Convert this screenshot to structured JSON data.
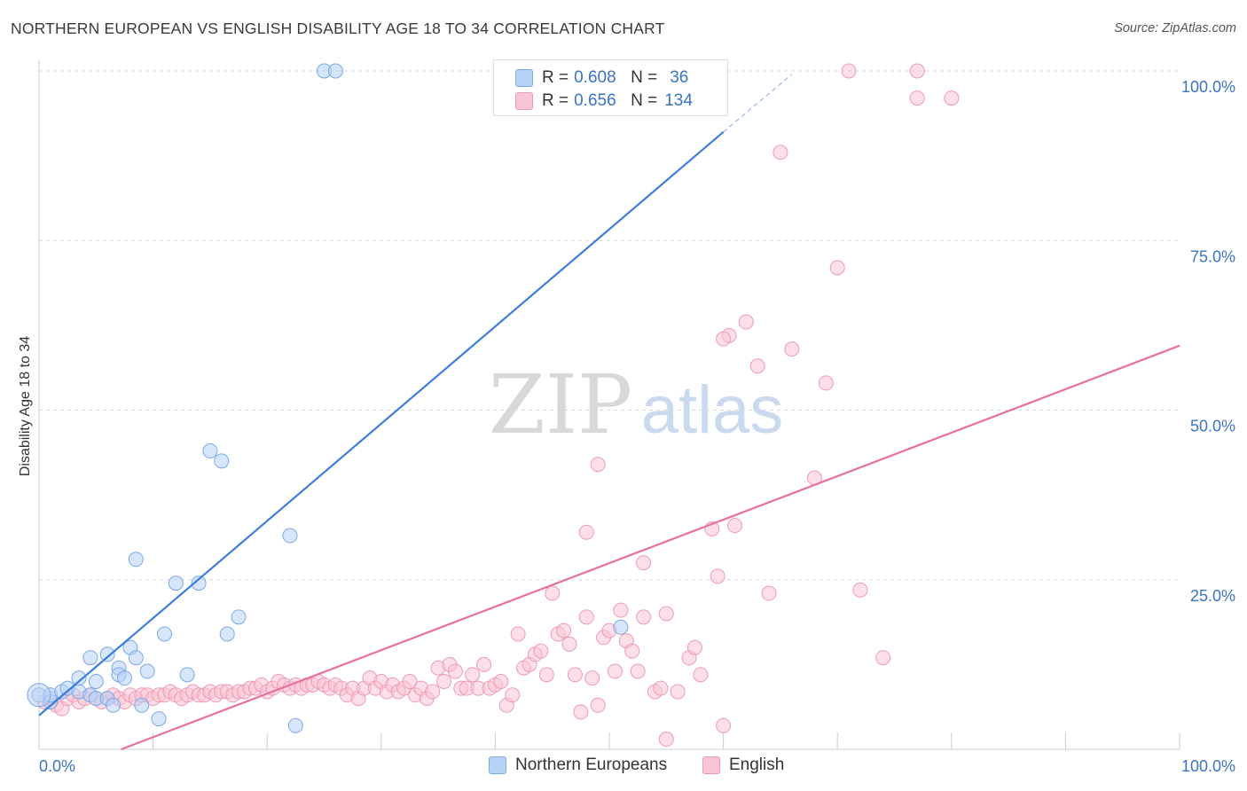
{
  "title": "NORTHERN EUROPEAN VS ENGLISH DISABILITY AGE 18 TO 34 CORRELATION CHART",
  "source": "Source: ZipAtlas.com",
  "watermark": {
    "zip": "ZIP",
    "atlas": "atlas"
  },
  "legend": {
    "items": [
      {
        "r_label": "R =",
        "r_value": "0.608",
        "n_label": "N =",
        "n_value": "36",
        "fill": "#b7d2f5",
        "stroke": "#7aa8e8"
      },
      {
        "r_label": "R =",
        "r_value": "0.656",
        "n_label": "N =",
        "n_value": "134",
        "fill": "#f9c4d4",
        "stroke": "#ef9ab5"
      }
    ]
  },
  "bottom_legend": [
    "Northern Europeans",
    "English"
  ],
  "chart_data": {
    "type": "scatter",
    "xlabel": "",
    "ylabel": "Disability Age 18 to 34",
    "xlim": [
      0,
      100
    ],
    "ylim": [
      0,
      100
    ],
    "x_tick_labels": [
      "0.0%",
      "100.0%"
    ],
    "y_tick_values": [
      25,
      50,
      75,
      100
    ],
    "y_tick_labels": [
      "25.0%",
      "50.0%",
      "75.0%",
      "100.0%"
    ],
    "grid": true,
    "series": [
      {
        "name": "Northern Europeans",
        "color": "#3c7fd8",
        "fill": "#b7d2f5",
        "stroke": "#7aa8e8",
        "trend": {
          "x0": 0,
          "y0": 5.0,
          "x1": 60,
          "y1": 91.0,
          "dash_to_x": 66,
          "dash_to_y": 99.5
        },
        "points": [
          [
            0,
            8
          ],
          [
            1,
            7
          ],
          [
            1,
            8
          ],
          [
            2,
            8.5
          ],
          [
            2.5,
            9
          ],
          [
            3.5,
            8.5
          ],
          [
            3.5,
            10.5
          ],
          [
            4.5,
            8
          ],
          [
            4.5,
            13.5
          ],
          [
            5,
            7.5
          ],
          [
            5,
            10
          ],
          [
            6,
            7.5
          ],
          [
            6,
            14
          ],
          [
            6.5,
            6.5
          ],
          [
            7,
            12
          ],
          [
            7,
            11
          ],
          [
            7.5,
            10.5
          ],
          [
            8,
            15
          ],
          [
            8.5,
            28
          ],
          [
            8.5,
            13.5
          ],
          [
            9,
            6.5
          ],
          [
            9.5,
            11.5
          ],
          [
            10.5,
            4.5
          ],
          [
            11,
            17
          ],
          [
            12,
            24.5
          ],
          [
            13,
            11
          ],
          [
            14,
            24.5
          ],
          [
            15,
            44
          ],
          [
            16,
            42.5
          ],
          [
            16.5,
            17
          ],
          [
            17.5,
            19.5
          ],
          [
            22,
            31.5
          ],
          [
            22.5,
            3.5
          ],
          [
            25,
            100
          ],
          [
            26,
            100
          ],
          [
            51,
            18
          ]
        ]
      },
      {
        "name": "English",
        "color": "#e8719c",
        "fill": "#f9c4d4",
        "stroke": "#ef9ab5",
        "trend": {
          "x0": 7.2,
          "y0": 0,
          "x1": 100,
          "y1": 59.5
        },
        "points": [
          [
            0.5,
            7
          ],
          [
            1,
            7.5
          ],
          [
            1.5,
            6.5
          ],
          [
            2,
            6
          ],
          [
            2.5,
            7.5
          ],
          [
            3,
            8
          ],
          [
            3.5,
            7
          ],
          [
            4,
            7.5
          ],
          [
            4.5,
            8
          ],
          [
            5,
            7.5
          ],
          [
            5.5,
            7
          ],
          [
            6,
            7.5
          ],
          [
            6.5,
            8
          ],
          [
            7,
            7.5
          ],
          [
            7.5,
            7
          ],
          [
            8,
            8
          ],
          [
            8.5,
            7.5
          ],
          [
            9,
            8
          ],
          [
            9.5,
            8
          ],
          [
            10,
            7.5
          ],
          [
            10.5,
            8
          ],
          [
            11,
            8
          ],
          [
            11.5,
            8.5
          ],
          [
            12,
            8
          ],
          [
            12.5,
            7.5
          ],
          [
            13,
            8
          ],
          [
            13.5,
            8.5
          ],
          [
            14,
            8
          ],
          [
            14.5,
            8
          ],
          [
            15,
            8.5
          ],
          [
            15.5,
            8
          ],
          [
            16,
            8.5
          ],
          [
            16.5,
            8.5
          ],
          [
            17,
            8
          ],
          [
            17.5,
            8.5
          ],
          [
            18,
            8.5
          ],
          [
            18.5,
            9
          ],
          [
            19,
            9
          ],
          [
            19.5,
            9.5
          ],
          [
            20,
            8.5
          ],
          [
            20.5,
            9
          ],
          [
            21,
            10
          ],
          [
            21.5,
            9.5
          ],
          [
            22,
            9
          ],
          [
            22.5,
            9.5
          ],
          [
            23,
            9
          ],
          [
            23.5,
            9.5
          ],
          [
            24,
            9.5
          ],
          [
            24.5,
            10
          ],
          [
            25,
            9.5
          ],
          [
            25.5,
            9
          ],
          [
            26,
            9.5
          ],
          [
            26.5,
            9
          ],
          [
            27,
            8
          ],
          [
            27.5,
            9
          ],
          [
            28,
            7.5
          ],
          [
            28.5,
            9
          ],
          [
            29,
            10.5
          ],
          [
            29.5,
            9
          ],
          [
            30,
            10
          ],
          [
            30.5,
            8.5
          ],
          [
            31,
            9.5
          ],
          [
            31.5,
            8.5
          ],
          [
            32,
            9
          ],
          [
            32.5,
            10
          ],
          [
            33,
            8
          ],
          [
            33.5,
            9
          ],
          [
            34,
            7.5
          ],
          [
            34.5,
            8.5
          ],
          [
            35,
            12
          ],
          [
            35.5,
            10
          ],
          [
            36,
            12.5
          ],
          [
            36.5,
            11.5
          ],
          [
            37,
            9
          ],
          [
            37.5,
            9
          ],
          [
            38,
            11
          ],
          [
            38.5,
            9
          ],
          [
            39,
            12.5
          ],
          [
            39.5,
            9
          ],
          [
            40,
            9.5
          ],
          [
            40.5,
            10
          ],
          [
            41,
            6.5
          ],
          [
            41.5,
            8
          ],
          [
            42,
            17
          ],
          [
            42.5,
            12
          ],
          [
            43,
            12.5
          ],
          [
            43.5,
            14
          ],
          [
            44,
            14.5
          ],
          [
            44.5,
            11
          ],
          [
            45,
            23
          ],
          [
            45.5,
            17
          ],
          [
            46,
            17.5
          ],
          [
            46.5,
            15.5
          ],
          [
            47,
            11
          ],
          [
            47.5,
            5.5
          ],
          [
            48,
            19.5
          ],
          [
            48.5,
            10.5
          ],
          [
            49,
            6.5
          ],
          [
            49.5,
            16.5
          ],
          [
            50,
            17.5
          ],
          [
            50.5,
            11.5
          ],
          [
            51,
            20.5
          ],
          [
            51.5,
            16
          ],
          [
            52,
            14.5
          ],
          [
            52.5,
            11.5
          ],
          [
            53,
            19.5
          ],
          [
            54,
            8.5
          ],
          [
            54.5,
            9
          ],
          [
            55,
            20
          ],
          [
            56,
            8.5
          ],
          [
            57,
            13.5
          ],
          [
            57.5,
            15
          ],
          [
            58,
            11
          ],
          [
            59,
            32.5
          ],
          [
            59.5,
            25.5
          ],
          [
            60,
            3.5
          ],
          [
            61,
            33
          ],
          [
            62,
            63
          ],
          [
            60.5,
            61
          ],
          [
            60,
            60.5
          ],
          [
            55,
            1.5
          ],
          [
            63,
            56.5
          ],
          [
            64,
            23
          ],
          [
            65,
            88
          ],
          [
            66,
            59
          ],
          [
            68,
            40
          ],
          [
            69,
            54
          ],
          [
            70,
            71
          ],
          [
            71,
            100
          ],
          [
            72,
            23.5
          ],
          [
            74,
            13.5
          ],
          [
            77,
            100
          ],
          [
            77,
            96
          ],
          [
            80,
            96
          ],
          [
            49,
            42
          ],
          [
            48,
            32
          ],
          [
            53,
            27.5
          ]
        ]
      }
    ]
  }
}
